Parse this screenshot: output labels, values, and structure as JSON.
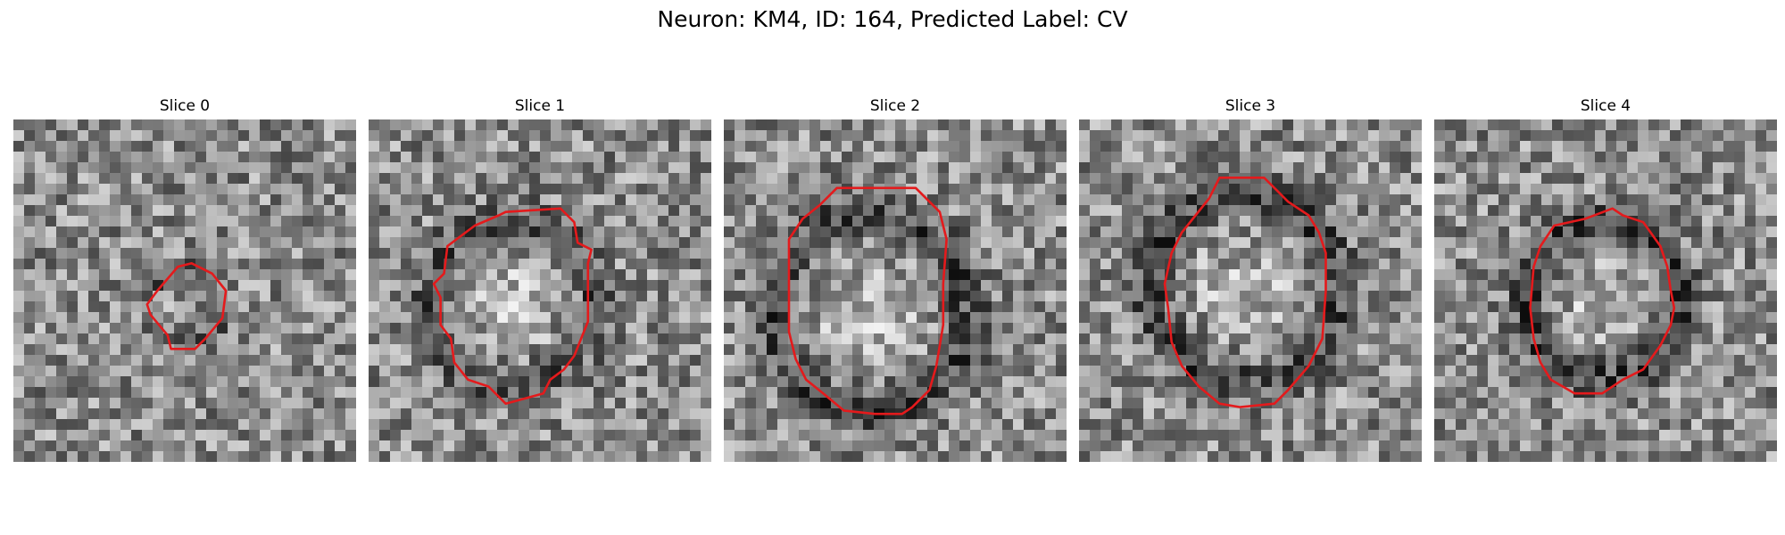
{
  "figure": {
    "title": "Neuron: KM4, ID: 164, Predicted Label: CV",
    "contour_color": "#e41a1c",
    "colormap": "grayscale",
    "panels": [
      {
        "title": "Slice 0",
        "dark_ring": 0.35,
        "center_bright": 0.05,
        "seed": 11,
        "contour": [
          [
            0.52,
            0.42
          ],
          [
            0.58,
            0.45
          ],
          [
            0.62,
            0.5
          ],
          [
            0.61,
            0.58
          ],
          [
            0.56,
            0.64
          ],
          [
            0.53,
            0.67
          ],
          [
            0.46,
            0.67
          ],
          [
            0.45,
            0.63
          ],
          [
            0.4,
            0.57
          ],
          [
            0.39,
            0.54
          ],
          [
            0.42,
            0.5
          ],
          [
            0.48,
            0.43
          ]
        ]
      },
      {
        "title": "Slice 1",
        "dark_ring": 0.45,
        "center_bright": 0.55,
        "seed": 23,
        "contour": [
          [
            0.4,
            0.27
          ],
          [
            0.56,
            0.26
          ],
          [
            0.6,
            0.3
          ],
          [
            0.61,
            0.36
          ],
          [
            0.65,
            0.38
          ],
          [
            0.64,
            0.42
          ],
          [
            0.64,
            0.59
          ],
          [
            0.6,
            0.69
          ],
          [
            0.57,
            0.73
          ],
          [
            0.53,
            0.76
          ],
          [
            0.51,
            0.8
          ],
          [
            0.4,
            0.83
          ],
          [
            0.35,
            0.78
          ],
          [
            0.29,
            0.76
          ],
          [
            0.25,
            0.71
          ],
          [
            0.24,
            0.64
          ],
          [
            0.21,
            0.6
          ],
          [
            0.21,
            0.52
          ],
          [
            0.19,
            0.48
          ],
          [
            0.22,
            0.45
          ],
          [
            0.23,
            0.37
          ],
          [
            0.31,
            0.31
          ],
          [
            0.38,
            0.28
          ]
        ]
      },
      {
        "title": "Slice 2",
        "dark_ring": 0.55,
        "center_bright": 0.5,
        "seed": 37,
        "contour": [
          [
            0.33,
            0.2
          ],
          [
            0.56,
            0.2
          ],
          [
            0.63,
            0.27
          ],
          [
            0.65,
            0.35
          ],
          [
            0.64,
            0.48
          ],
          [
            0.64,
            0.6
          ],
          [
            0.62,
            0.72
          ],
          [
            0.6,
            0.79
          ],
          [
            0.55,
            0.84
          ],
          [
            0.52,
            0.86
          ],
          [
            0.44,
            0.86
          ],
          [
            0.35,
            0.85
          ],
          [
            0.29,
            0.8
          ],
          [
            0.24,
            0.76
          ],
          [
            0.21,
            0.7
          ],
          [
            0.19,
            0.62
          ],
          [
            0.19,
            0.35
          ],
          [
            0.23,
            0.29
          ],
          [
            0.28,
            0.25
          ]
        ]
      },
      {
        "title": "Slice 3",
        "dark_ring": 0.55,
        "center_bright": 0.4,
        "seed": 41,
        "contour": [
          [
            0.41,
            0.17
          ],
          [
            0.54,
            0.17
          ],
          [
            0.58,
            0.21
          ],
          [
            0.61,
            0.24
          ],
          [
            0.67,
            0.28
          ],
          [
            0.7,
            0.33
          ],
          [
            0.72,
            0.39
          ],
          [
            0.72,
            0.5
          ],
          [
            0.71,
            0.64
          ],
          [
            0.67,
            0.72
          ],
          [
            0.61,
            0.79
          ],
          [
            0.57,
            0.83
          ],
          [
            0.47,
            0.84
          ],
          [
            0.41,
            0.83
          ],
          [
            0.35,
            0.78
          ],
          [
            0.3,
            0.72
          ],
          [
            0.27,
            0.65
          ],
          [
            0.26,
            0.55
          ],
          [
            0.25,
            0.48
          ],
          [
            0.27,
            0.39
          ],
          [
            0.3,
            0.33
          ],
          [
            0.34,
            0.28
          ],
          [
            0.38,
            0.23
          ]
        ]
      },
      {
        "title": "Slice 4",
        "dark_ring": 0.6,
        "center_bright": 0.45,
        "seed": 53,
        "contour": [
          [
            0.44,
            0.29
          ],
          [
            0.52,
            0.26
          ],
          [
            0.55,
            0.28
          ],
          [
            0.61,
            0.3
          ],
          [
            0.66,
            0.37
          ],
          [
            0.68,
            0.43
          ],
          [
            0.69,
            0.5
          ],
          [
            0.7,
            0.55
          ],
          [
            0.69,
            0.6
          ],
          [
            0.66,
            0.66
          ],
          [
            0.61,
            0.73
          ],
          [
            0.55,
            0.76
          ],
          [
            0.49,
            0.8
          ],
          [
            0.41,
            0.8
          ],
          [
            0.34,
            0.76
          ],
          [
            0.31,
            0.71
          ],
          [
            0.29,
            0.64
          ],
          [
            0.28,
            0.55
          ],
          [
            0.29,
            0.43
          ],
          [
            0.31,
            0.37
          ],
          [
            0.35,
            0.31
          ]
        ]
      }
    ]
  }
}
